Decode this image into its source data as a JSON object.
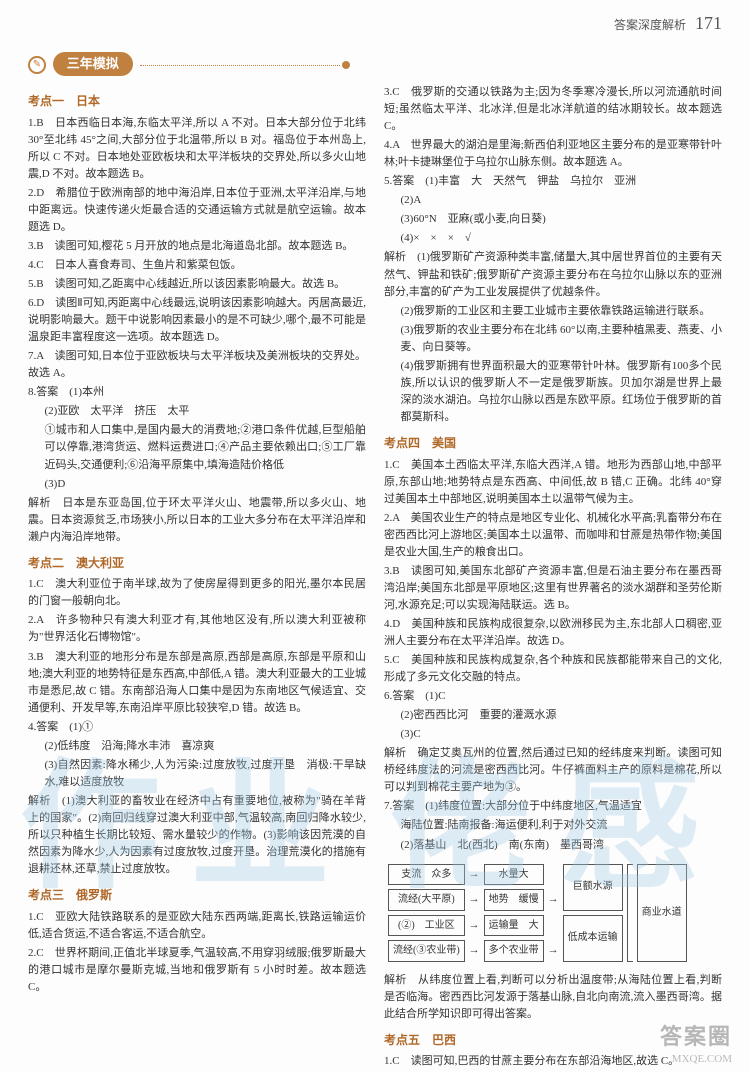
{
  "header": {
    "label": "答案深度解析",
    "page": "171"
  },
  "badge": {
    "text": "三年模拟"
  },
  "sections": {
    "kd1": "考点一　日本",
    "kd2": "考点二　澳大利亚",
    "kd3": "考点三　俄罗斯",
    "kd4": "考点四　美国",
    "kd5": "考点五　巴西"
  },
  "c1": {
    "p1a": "1.B　日本西临日本海,东临太平洋,所以 A 不对。日本大部分位于北纬 30°至北纬 45°之间,大部分位于北温带,所以 B 对。福岛位于本州岛上,所以 C 不对。日本地处亚欧板块和太平洋板块的交界处,所以多火山地震,D 不对。故本题选 B。",
    "p2": "2.D　希腊位于欧洲南部的地中海沿岸,日本位于亚洲,太平洋沿岸,与地中距离远。快速传递火炬最合适的交通运输方式就是航空运输。故本题选 D。",
    "p3": "3.B　读图可知,樱花 5 月开放的地点是北海道岛北部。故本题选 B。",
    "p4": "4.C　日本人喜食寿司、生鱼片和紫菜包饭。",
    "p5": "5.B　读图可知,乙距离中心线越近,所以该因素影响最大。故选 B。",
    "p6": "6.D　读图Ⅱ可知,丙距离中心线最远,说明该因素影响越大。丙居高最近,说明影响最大。题干中说影响因素最小的是不可缺少,哪个,最不可能是温泉距丰富程度这一选项。故本题选 D。",
    "p7": "7.A　读图可知,日本位于亚欧板块与太平洋板块及美洲板块的交界处。故选 A。",
    "p8a": "8.答案　(1)本州",
    "p8b": "(2)亚欧　太平洋　挤压　太平",
    "p8c": "①城市和人口集中,是国内最大的消费地;②港口条件优越,巨型船舶可以停靠,港湾货运、燃料运费进口;④产品主要依赖出口;⑤工厂靠近码头,交通便利;⑥沿海平原集中,填海造陆价格低",
    "p8d": "(3)D",
    "p8e": "解析　日本是东亚岛国,位于环太平洋火山、地震带,所以多火山、地震。日本资源贫乏,市场狭小,所以日本的工业大多分布在太平洋沿岸和濑户内海沿岸地带。",
    "kd2_1": "1.C　澳大利亚位于南半球,故为了使房屋得到更多的阳光,墨尔本民居的门窗一般朝向北。",
    "kd2_2": "2.A　许多物种只有澳大利亚才有,其他地区没有,所以澳大利亚被称为\"世界活化石博物馆\"。",
    "kd2_3": "3.B　澳大利亚的地形分布是东部是高原,西部是高原,东部是平原和山地;澳大利亚的地势特征是东西高,中部低,A 错。澳大利亚最大的工业城市是悉尼,故 C 错。东南部沿海人口集中是因为东南地区气候适宜、交通便利、开发早等,东南沿岸平原比较狭窄,D 错。故选 B。",
    "kd2_4a": "4.答案　(1)①",
    "kd2_4b": "(2)低纬度　沿海;降水丰沛　喜凉爽",
    "kd2_4c": "(3)自然因素:降水稀少,人为污染:过度放牧,过度开垦　消极:干旱缺水,难以适度放牧",
    "kd2_4d": "解析　(1)澳大利亚的畜牧业在经济中占有重要地位,被称为\"骑在羊背上的国家\"。(2)南回归线穿过澳大利亚中部,气温较高,南回归降水较少,所以只种植生长期比较短、需水量较少的作物。(3)影响该因荒漠的自然因素为降水少,人为因素有过度放牧,过度开垦。治理荒漠化的措施有退耕还林,还草,禁止过度放牧。",
    "kd3_1": "1.C　亚欧大陆铁路联系的是亚欧大陆东西两端,距离长,铁路运输运价低,适合货运,不适合客运,不适合航空。",
    "kd3_2": "2.C　世界杯期间,正值北半球夏季,气温较高,不用穿羽绒服;俄罗斯最大的港口城市是摩尔曼斯克城,当地和俄罗斯有 5 小时时差。故本题选 C。"
  },
  "c2": {
    "p3c": "3.C　俄罗斯的交通以铁路为主;因为冬季寒冷漫长,所以河流通航时间短;虽然临太平洋、北冰洋,但是北冰洋航道的结冰期较长。故本题选 C。",
    "p4a": "4.A　世界最大的湖泊是里海;新西伯利亚地区主要分布的是亚寒带针叶林;叶卡捷琳堡位于乌拉尔山脉东侧。故本题选 A。",
    "p5a": "5.答案　(1)丰富　大　天然气　钾盐　乌拉尔　亚洲",
    "p5b": "(2)A",
    "p5c": "(3)60°N　亚麻(或小麦,向日葵)",
    "p5d": "(4)×　×　×　√",
    "p5e": "解析　(1)俄罗斯矿产资源种类丰富,储量大,其中居世界首位的主要有天然气、钾盐和铁矿;俄罗斯矿产资源主要分布在乌拉尔山脉以东的亚洲部分,丰富的矿产为工业发展提供了优越条件。",
    "p5f": "(2)俄罗斯的工业区和主要工业城市主要依靠铁路运输进行联系。",
    "p5g": "(3)俄罗斯的农业主要分布在北纬 60°以南,主要种植黑麦、燕麦、小麦、向日葵等。",
    "p5h": "(4)俄罗斯拥有世界面积最大的亚寒带针叶林。俄罗斯有100多个民族,所以认识的俄罗斯人不一定是俄罗斯族。贝加尔湖是世界上最深的淡水湖泊。乌拉尔山脉以西是东欧平原。红场位于俄罗斯的首都莫斯科。",
    "kd4_1": "1.C　美国本土西临太平洋,东临大西洋,A 错。地形为西部山地,中部平原,东部山地;地势特点是东西高、中间低,故 B 错,C 正确。北纬 40°穿过美国本土中部地区,说明美国本土以温带气候为主。",
    "kd4_2": "2.A　美国农业生产的特点是地区专业化、机械化水平高;乳畜带分布在密西西比河上游地区;美国本土以温带、而咖啡和甘蔗是热带作物;美国是农业大国,生产的粮食出口。",
    "kd4_3": "3.B　读图可知,美国东北部矿产资源丰富,但是石油主要分布在墨西哥湾沿岸;美国东北部是平原地区;这里有世界著名的淡水湖群和圣劳伦斯河,水源充足;可以实现海陆联运。选 B。",
    "kd4_4": "4.D　美国种族和民族构成很复杂,以欧洲移民为主,东北部人口稠密,亚洲人主要分布在太平洋沿岸。故选 D。",
    "kd4_5": "5.C　美国种族和民族构成复杂,各个种族和民族都能带来自己的文化,形成了多元文化交融的特点。",
    "kd4_6a": "6.答案　(1)C",
    "kd4_6b": "(2)密西西比河　重要的灌溉水源",
    "kd4_6c": "(3)C",
    "kd4_6d": "解析　确定艾奥瓦州的位置,然后通过已知的经纬度来判断。读图可知桥经纬度法的河流是密西西比河。牛仔裤面料主产的原料是棉花,所以可以判到棉花主要产地为③。",
    "kd4_7a": "7.答案　(1)纬度位置:大部分位于中纬度地区,气温适宜",
    "kd4_7b": "海陆位置:陆南报备:海运便利,利于对外交流",
    "kd4_7c": "(2)落基山　北(西北)　南(东南)　墨西哥湾",
    "kd4_7x": "解析　从纬度位置上看,判断可以分析出温度带;从海陆位置上看,判断是否临海。密西西比河发源于落基山脉,自北向南流,流入墨西哥湾。据此结合所学知识即可得出答案。",
    "kd5_1": "1.C　读图可知,巴西的甘蔗主要分布在东部沿海地区,故选 C。"
  },
  "diagram": {
    "r1a": "支流　众多",
    "r1b": "水量大",
    "r2a": "流经(大平原)",
    "r2b": "地势　缓慢",
    "r2c": "河流航运",
    "r3a": "(②)　工业区",
    "r3b": "运输量　大",
    "r4a": "流经(③农业带)",
    "r4b": "多个农业带",
    "r4c": "资源便利",
    "side1": "巨额水源",
    "side2": "低成本运输",
    "side3": "商业水道"
  },
  "watermark": {
    "a": "作",
    "b": "业",
    "c": "佬",
    "d": "感"
  },
  "footer": {
    "l1": "答案圈",
    "l2": "MXQE.COM"
  }
}
